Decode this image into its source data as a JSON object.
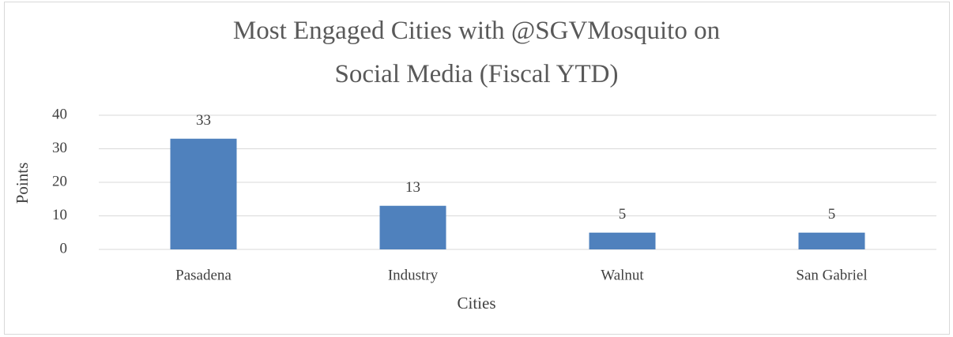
{
  "chart_data": {
    "type": "bar",
    "title": "Most Engaged Cities with @SGVMosquito on Social Media (Fiscal YTD)",
    "categories": [
      "Pasadena",
      "Industry",
      "Walnut",
      "San Gabriel"
    ],
    "values": [
      33,
      13,
      5,
      5
    ],
    "color": "#4f81bd",
    "x_label": "Cities",
    "y_label": "Points",
    "ylim": [
      0,
      40
    ],
    "yticks": [
      0,
      10,
      20,
      30,
      40
    ],
    "grid": true,
    "data_labels": true
  }
}
